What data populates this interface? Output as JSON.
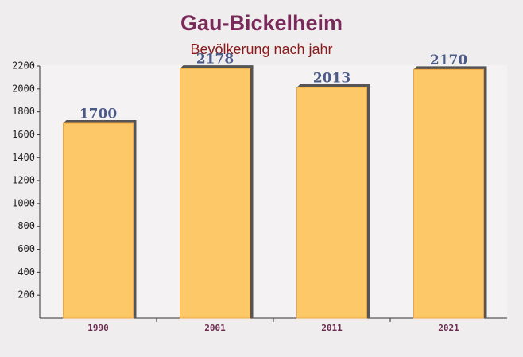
{
  "chart_data": {
    "type": "bar",
    "title": "Gau-Bickelheim",
    "subtitle": "Bevölkerung nach jahr",
    "categories": [
      "1990",
      "2001",
      "2011",
      "2021"
    ],
    "values": [
      1700,
      2178,
      2013,
      2170
    ],
    "color": "#fdc867",
    "ylim": [
      0,
      2200
    ],
    "yticks": [
      200,
      400,
      600,
      800,
      1000,
      1200,
      1400,
      1600,
      1800,
      2000,
      2200
    ],
    "grid": false
  }
}
